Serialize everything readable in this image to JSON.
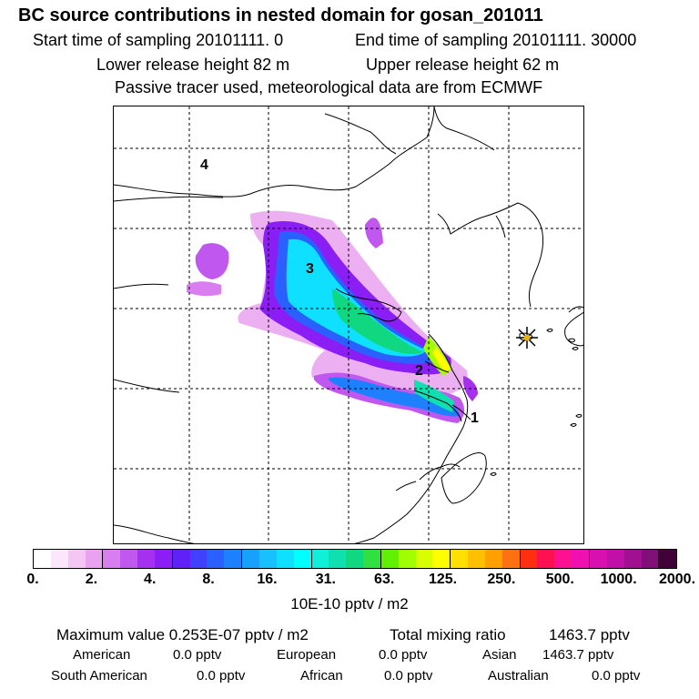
{
  "header": {
    "title": "BC  source contributions in nested domain for gosan_201011",
    "start_label": "Start time of sampling 20101111.     0",
    "end_label": "End time of sampling 20101111. 30000",
    "lower_label": "Lower release height   82 m",
    "upper_label": "Upper release height   62 m",
    "tracer_line": "Passive tracer used, meteorological data are from ECMWF"
  },
  "map": {
    "region_labels": [
      "4",
      "3",
      "2",
      "1"
    ],
    "receptor_marker": "star-marker"
  },
  "colorbar": {
    "colors": [
      "#ffffff",
      "#fbe6fb",
      "#f4c6f4",
      "#e9a2f0",
      "#d97ef0",
      "#c058f0",
      "#a630f0",
      "#8a1ef5",
      "#6020f8",
      "#4040ff",
      "#2a60ff",
      "#1c80ff",
      "#18a0ff",
      "#18c0ff",
      "#10e0ff",
      "#00ffff",
      "#10f0d8",
      "#10e0b0",
      "#10d880",
      "#30e040",
      "#60f000",
      "#a0ff00",
      "#d8ff00",
      "#ffff00",
      "#ffe000",
      "#ffc000",
      "#ffa000",
      "#ff7010",
      "#ff3010",
      "#ff1050",
      "#ff1090",
      "#f010b0",
      "#d810b0",
      "#c010a8",
      "#a01090",
      "#801078",
      "#400038"
    ],
    "ticks": [
      "0.",
      "2.",
      "4.",
      "8.",
      "16.",
      "31.",
      "63.",
      "125.",
      "250.",
      "500.",
      "1000.",
      "2000."
    ],
    "units": "10E-10 pptv / m2"
  },
  "stats": {
    "max_label": "Maximum value  0.253E-07 pptv / m2",
    "total_label": "Total mixing ratio",
    "total_value": "1463.7 pptv"
  },
  "regions": [
    {
      "name": "American",
      "value": "0.0 pptv"
    },
    {
      "name": "European",
      "value": "0.0 pptv"
    },
    {
      "name": "Asian",
      "value": "1463.7 pptv"
    },
    {
      "name": "South American",
      "value": "0.0 pptv"
    },
    {
      "name": "African",
      "value": "0.0 pptv"
    },
    {
      "name": "Australian",
      "value": "0.0 pptv"
    }
  ]
}
